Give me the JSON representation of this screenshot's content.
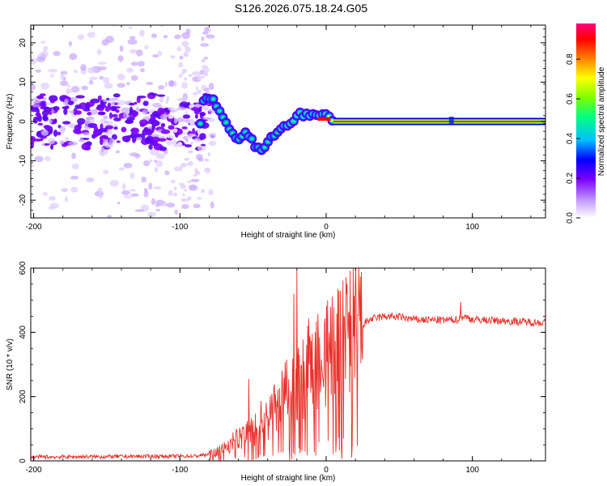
{
  "figure": {
    "title": "S126.2026.075.18.24.G05"
  },
  "chart_data": [
    {
      "type": "heatmap",
      "xlabel": "Height of straight line (km)",
      "ylabel": "Frequency (Hz)",
      "xlim": [
        -202,
        150
      ],
      "ylim": [
        -24.5,
        24.5
      ],
      "x_ticks": [
        -200,
        -100,
        0,
        100
      ],
      "y_ticks": [
        -20,
        -10,
        0,
        10,
        20
      ],
      "colorbar": {
        "label": "Normalized spectral amplitude",
        "range": [
          0,
          0.98
        ],
        "ticks": [
          0.0,
          0.2,
          0.4,
          0.6,
          0.8
        ],
        "colormap": [
          "#ffffff",
          "#c9a6ff",
          "#7a00ff",
          "#0000ff",
          "#00c0ff",
          "#00ff80",
          "#80ff00",
          "#ffff00",
          "#ff8000",
          "#ff0000",
          "#ff0080"
        ]
      },
      "ridge": {
        "description_points": [
          [
            -85,
            5.5
          ],
          [
            -78,
            6.0
          ],
          [
            -72,
            2.0
          ],
          [
            -66,
            -2.5
          ],
          [
            -60,
            -4.5
          ],
          [
            -54,
            -3.0
          ],
          [
            -48,
            -6.5
          ],
          [
            -42,
            -7.0
          ],
          [
            -36,
            -3.5
          ],
          [
            -30,
            -1.5
          ],
          [
            -24,
            0.0
          ],
          [
            -18,
            2.0
          ],
          [
            -12,
            1.5
          ],
          [
            -6,
            1.5
          ],
          [
            0,
            1.5
          ],
          [
            6,
            0.5
          ],
          [
            150,
            0.0
          ]
        ],
        "stable_from_km": 5,
        "stable_frequency_hz": 0
      }
    },
    {
      "type": "line",
      "xlabel": "Height of straight line (km)",
      "ylabel": "SNR (10 * v/v)",
      "xlim": [
        -202,
        150
      ],
      "ylim": [
        0,
        600
      ],
      "x_ticks": [
        -200,
        -100,
        0,
        100
      ],
      "y_ticks": [
        0,
        200,
        400,
        600
      ],
      "series": [
        {
          "name": "SNR",
          "color": "#e8302a",
          "envelope_x": [
            -202,
            -120,
            -90,
            -80,
            -70,
            -60,
            -50,
            -40,
            -30,
            -20,
            -10,
            0,
            10,
            20,
            30,
            40,
            50,
            60,
            80,
            90,
            94,
            100,
            120,
            140,
            150
          ],
          "envelope_y": [
            12,
            14,
            15,
            20,
            40,
            70,
            100,
            140,
            190,
            240,
            300,
            340,
            370,
            410,
            440,
            450,
            448,
            440,
            438,
            440,
            450,
            440,
            436,
            432,
            430
          ],
          "spikes": [
            [
              -53,
              255
            ],
            [
              -20,
              598
            ],
            [
              -22,
              520
            ],
            [
              92,
              495
            ]
          ]
        }
      ]
    }
  ]
}
